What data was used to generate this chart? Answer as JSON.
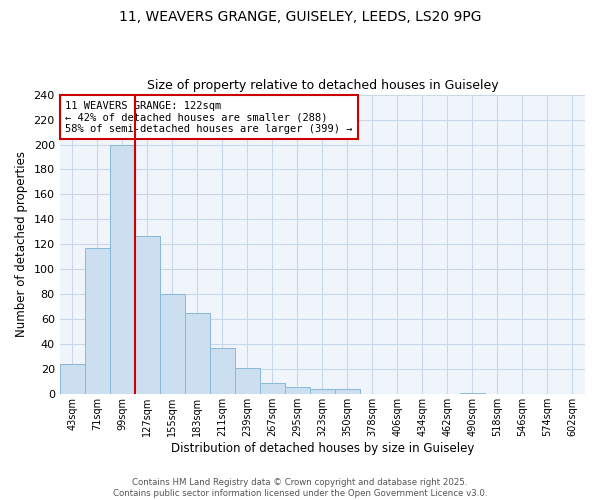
{
  "title1": "11, WEAVERS GRANGE, GUISELEY, LEEDS, LS20 9PG",
  "title2": "Size of property relative to detached houses in Guiseley",
  "xlabel": "Distribution of detached houses by size in Guiseley",
  "ylabel": "Number of detached properties",
  "bar_labels": [
    "43sqm",
    "71sqm",
    "99sqm",
    "127sqm",
    "155sqm",
    "183sqm",
    "211sqm",
    "239sqm",
    "267sqm",
    "295sqm",
    "323sqm",
    "350sqm",
    "378sqm",
    "406sqm",
    "434sqm",
    "462sqm",
    "490sqm",
    "518sqm",
    "546sqm",
    "574sqm",
    "602sqm"
  ],
  "bar_values": [
    24,
    117,
    200,
    127,
    80,
    65,
    37,
    21,
    9,
    6,
    4,
    4,
    0,
    0,
    0,
    0,
    1,
    0,
    0,
    0,
    0
  ],
  "bar_color": "#ccdff0",
  "bar_edge_color": "#89b8d8",
  "grid_color": "#c8d8e8",
  "bg_color": "#f0f5fb",
  "vline_x": 3,
  "vline_color": "#cc0000",
  "annotation_text": "11 WEAVERS GRANGE: 122sqm\n← 42% of detached houses are smaller (288)\n58% of semi-detached houses are larger (399) →",
  "annotation_box_color": "#ffffff",
  "annotation_border_color": "#cc0000",
  "footer1": "Contains HM Land Registry data © Crown copyright and database right 2025.",
  "footer2": "Contains public sector information licensed under the Open Government Licence v3.0.",
  "ylim": [
    0,
    240
  ],
  "yticks": [
    0,
    20,
    40,
    60,
    80,
    100,
    120,
    140,
    160,
    180,
    200,
    220,
    240
  ]
}
